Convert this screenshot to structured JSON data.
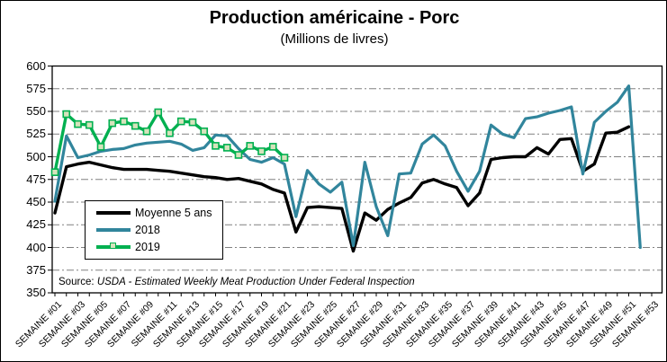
{
  "title": "Production américaine - Porc",
  "subtitle": "(Millions de livres)",
  "source": {
    "prefix": "Source:",
    "text": "USDA - Estimated Weekly Meat Production Under Federal Inspection"
  },
  "colors": {
    "avg_line": "#000000",
    "line_2018": "#31859C",
    "line_2019": "#00B050",
    "marker_fill_2019": "#D6E3BC",
    "gridline": "#808080",
    "frame": "#000000",
    "background": "#FFFFFF"
  },
  "chart_data": {
    "type": "line",
    "title": "Production américaine - Porc",
    "subtitle": "(Millions de livres)",
    "xlabel": "",
    "ylabel": "",
    "ylim": [
      350,
      600
    ],
    "ytick_step": 25,
    "y_ticks": [
      600,
      575,
      550,
      525,
      500,
      475,
      450,
      425,
      400,
      375,
      350
    ],
    "grid": "horizontal dash-dot",
    "legend_position": "inside-left",
    "weeks_total": 53,
    "x_tick_labels": [
      "SEMAINE #01",
      "SEMAINE #03",
      "SEMAINE #05",
      "SEMAINE #07",
      "SEMAINE #09",
      "SEMAINE #11",
      "SEMAINE #13",
      "SEMAINE #15",
      "SEMAINE #17",
      "SEMAINE #19",
      "SEMAINE #21",
      "SEMAINE #23",
      "SEMAINE #25",
      "SEMAINE #27",
      "SEMAINE #29",
      "SEMAINE #31",
      "SEMAINE #33",
      "SEMAINE #35",
      "SEMAINE #37",
      "SEMAINE #39",
      "SEMAINE #41",
      "SEMAINE #43",
      "SEMAINE #45",
      "SEMAINE #47",
      "SEMAINE #49",
      "SEMAINE #51",
      "SEMAINE #53"
    ],
    "series": [
      {
        "name": "Moyenne 5 ans",
        "color": "#000000",
        "width": 3.4,
        "marker": "none",
        "start_week": 1,
        "values": [
          438,
          489,
          492,
          494,
          491,
          488,
          486,
          486,
          486,
          485,
          484,
          482,
          480,
          478,
          477,
          475,
          476,
          473,
          470,
          464,
          460,
          417,
          444,
          445,
          444,
          443,
          396,
          438,
          430,
          442,
          449,
          455,
          471,
          475,
          470,
          466,
          446,
          460,
          497,
          499,
          500,
          500,
          510,
          503,
          519,
          520,
          484,
          492,
          526,
          527,
          533
        ]
      },
      {
        "name": "2018",
        "color": "#31859C",
        "width": 3.2,
        "marker": "none",
        "start_week": 1,
        "values": [
          451,
          523,
          499,
          502,
          506,
          508,
          509,
          513,
          515,
          516,
          517,
          514,
          507,
          510,
          524,
          523,
          509,
          497,
          494,
          499,
          492,
          434,
          485,
          470,
          461,
          472,
          402,
          494,
          445,
          413,
          481,
          482,
          514,
          524,
          512,
          484,
          462,
          484,
          535,
          525,
          521,
          542,
          544,
          548,
          551,
          555,
          481,
          538,
          550,
          560,
          578,
          400
        ]
      },
      {
        "name": "2019",
        "color": "#00B050",
        "width": 3.4,
        "marker": "square",
        "marker_fill": "#D6E3BC",
        "start_week": 1,
        "values": [
          483,
          547,
          536,
          535,
          511,
          537,
          539,
          534,
          528,
          549,
          526,
          539,
          538,
          528,
          512,
          510,
          502,
          512,
          506,
          511,
          499
        ]
      }
    ]
  }
}
